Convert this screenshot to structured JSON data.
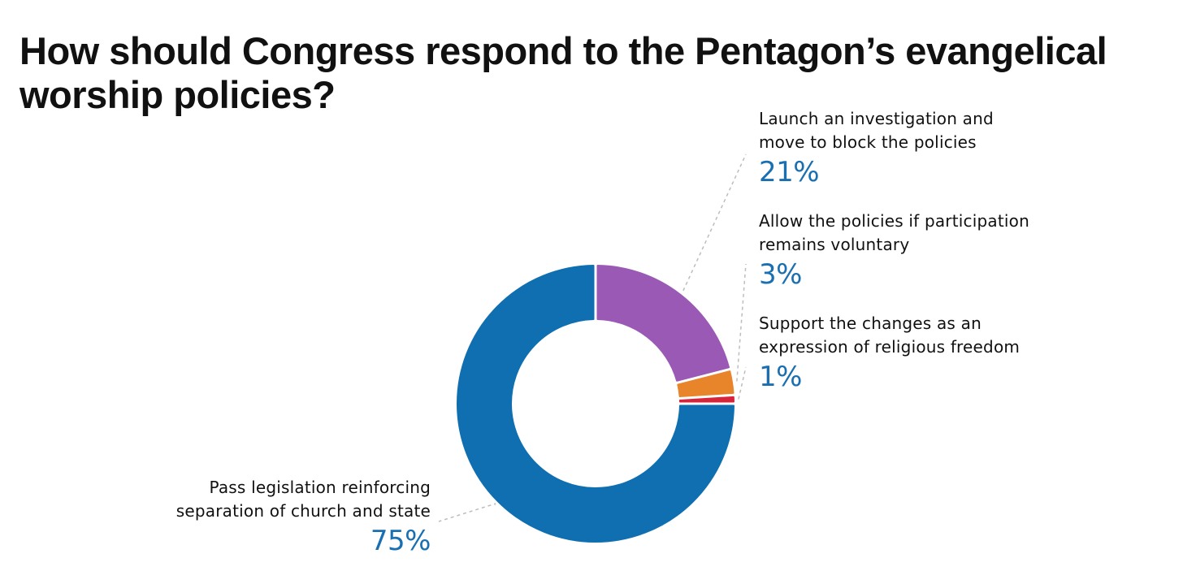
{
  "chart_data": {
    "type": "pie",
    "title": "How should Congress respond to the Pentagon’s evangelical worship policies?",
    "variant": "donut",
    "slices": [
      {
        "label": "Launch an investigation and move to block the policies",
        "value": 21,
        "value_label": "21%",
        "color": "#9b59b6"
      },
      {
        "label": "Allow the policies if participation remains voluntary",
        "value": 3,
        "value_label": "3%",
        "color": "#e8852b"
      },
      {
        "label": "Support the changes as an expression of religious freedom",
        "value": 1,
        "value_label": "1%",
        "color": "#d8243a"
      },
      {
        "label": "Pass legislation reinforcing separation of church and state",
        "value": 75,
        "value_label": "75%",
        "color": "#0f6fb0"
      }
    ],
    "start_angle": "top",
    "direction": "clockwise",
    "legend": "none"
  },
  "colors": {
    "value_text": "#1a6fb1",
    "leader_line": "#bdbdbd"
  },
  "labels": {
    "s0_line1": "Launch an investigation and",
    "s0_line2": "move to block the policies",
    "s1_line1": "Allow the policies if participation",
    "s1_line2": "remains voluntary",
    "s2_line1": "Support the changes as an",
    "s2_line2": "expression of religious freedom",
    "s3_line1": "Pass legislation reinforcing",
    "s3_line2": "separation of church and state"
  }
}
